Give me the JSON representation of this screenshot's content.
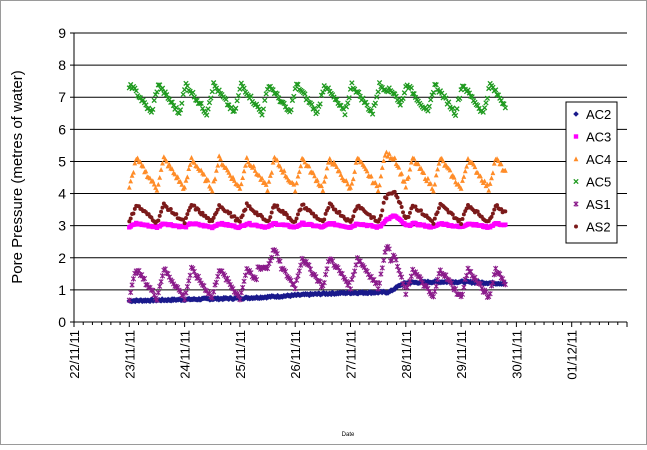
{
  "chart_data": {
    "type": "scatter",
    "title": "",
    "xlabel": "Date",
    "ylabel": "Pore Pressure (metres of water)",
    "ylim": [
      0,
      9
    ],
    "yticks": [
      "0",
      "1",
      "2",
      "3",
      "4",
      "5",
      "6",
      "7",
      "8",
      "9"
    ],
    "xticks": [
      "22/11/11",
      "23/11/11",
      "24/11/11",
      "25/11/11",
      "26/11/11",
      "27/11/11",
      "28/11/11",
      "29/11/11",
      "30/11/11",
      "01/12/11"
    ],
    "grid": "horizontal",
    "legend_position": "right",
    "series": [
      {
        "name": "AC2",
        "color": "#1a1a8c",
        "marker": "diamond",
        "base": 0.65,
        "amp": 0,
        "bumps": [],
        "points": [
          [
            23.0,
            0.66
          ],
          [
            23.5,
            0.68
          ],
          [
            24.0,
            0.7
          ],
          [
            24.5,
            0.72
          ],
          [
            25.0,
            0.74
          ],
          [
            25.5,
            0.78
          ],
          [
            26.0,
            0.83
          ],
          [
            26.5,
            0.88
          ],
          [
            27.0,
            0.91
          ],
          [
            27.5,
            0.92
          ],
          [
            27.7,
            0.93
          ],
          [
            27.9,
            1.15
          ],
          [
            28.0,
            1.22
          ],
          [
            28.5,
            1.25
          ],
          [
            29.0,
            1.25
          ],
          [
            29.5,
            1.22
          ],
          [
            29.8,
            1.2
          ]
        ]
      },
      {
        "name": "AC3",
        "color": "#ff00ff",
        "marker": "square",
        "base": 2.95,
        "amp": 0.12,
        "bumps": [
          [
            27.8,
            0.3
          ]
        ],
        "points": []
      },
      {
        "name": "AC4",
        "color": "#ff8c28",
        "marker": "triangle",
        "base": 4.15,
        "amp": 0.95,
        "bumps": [
          [
            27.8,
            0.45
          ]
        ],
        "points": []
      },
      {
        "name": "AC5",
        "color": "#1f9a1f",
        "marker": "x",
        "base": 6.5,
        "amp": 0.9,
        "bumps": [
          [
            27.8,
            0.4
          ]
        ],
        "points": []
      },
      {
        "name": "AS1",
        "color": "#8a1a8a",
        "marker": "star",
        "base": 0.75,
        "amp": 0.9,
        "bumps": [
          [
            25.5,
            0.6
          ],
          [
            27.8,
            0.8
          ]
        ],
        "points": []
      },
      {
        "name": "AS2",
        "color": "#7b1a1a",
        "marker": "circle",
        "base": 3.1,
        "amp": 0.55,
        "bumps": [
          [
            27.8,
            0.7
          ]
        ],
        "points": []
      }
    ],
    "x_start": 23.0,
    "x_end": 29.8,
    "cycle_period": 0.5
  }
}
